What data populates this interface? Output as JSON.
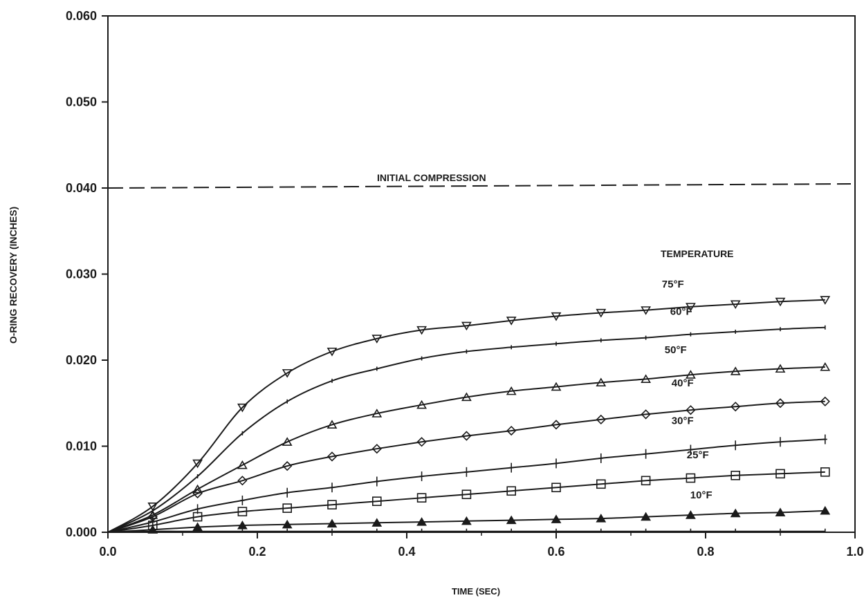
{
  "chart_data": {
    "type": "line",
    "title": "",
    "xlabel": "TIME (SEC)",
    "ylabel": "O-RING RECOVERY (INCHES)",
    "xlim": [
      0.0,
      1.0
    ],
    "ylim": [
      0.0,
      0.06
    ],
    "x_ticks": [
      0.0,
      0.2,
      0.4,
      0.6,
      0.8,
      1.0
    ],
    "x_tick_labels": [
      "0.0",
      "0.2",
      "0.4",
      "0.6",
      "0.8",
      "1.0"
    ],
    "y_ticks": [
      0.0,
      0.01,
      0.02,
      0.03,
      0.04,
      0.05,
      0.06
    ],
    "y_tick_labels": [
      "0.000",
      "0.010",
      "0.020",
      "0.030",
      "0.040",
      "0.050",
      "0.060"
    ],
    "grid": false,
    "legend_title": "TEMPERATURE",
    "reference_line": {
      "label": "INITIAL COMPRESSION",
      "y": 0.04,
      "style": "dashed"
    },
    "x": [
      0,
      0.06,
      0.12,
      0.18,
      0.24,
      0.3,
      0.36,
      0.42,
      0.48,
      0.54,
      0.6,
      0.66,
      0.72,
      0.78,
      0.84,
      0.9,
      0.96
    ],
    "series": [
      {
        "name": "75°F",
        "marker": "triangle-down",
        "values": [
          0,
          0.003,
          0.008,
          0.0145,
          0.0185,
          0.021,
          0.0225,
          0.0235,
          0.024,
          0.0246,
          0.0251,
          0.0255,
          0.0258,
          0.0262,
          0.0265,
          0.0268,
          0.027
        ]
      },
      {
        "name": "60°F",
        "marker": "cross",
        "values": [
          0,
          0.0025,
          0.0065,
          0.0115,
          0.0152,
          0.0176,
          0.019,
          0.0202,
          0.021,
          0.0215,
          0.0219,
          0.0223,
          0.0226,
          0.023,
          0.0233,
          0.0236,
          0.0238
        ]
      },
      {
        "name": "50°F",
        "marker": "triangle",
        "values": [
          0,
          0.002,
          0.005,
          0.0078,
          0.0105,
          0.0125,
          0.0138,
          0.0148,
          0.0157,
          0.0164,
          0.0169,
          0.0174,
          0.0178,
          0.0183,
          0.0187,
          0.019,
          0.0192
        ]
      },
      {
        "name": "40°F",
        "marker": "diamond",
        "values": [
          0,
          0.0018,
          0.0045,
          0.006,
          0.0077,
          0.0088,
          0.0097,
          0.0105,
          0.0112,
          0.0118,
          0.0125,
          0.0131,
          0.0137,
          0.0142,
          0.0146,
          0.015,
          0.0152
        ]
      },
      {
        "name": "30°F",
        "marker": "plus",
        "values": [
          0,
          0.0012,
          0.0027,
          0.0037,
          0.0046,
          0.0052,
          0.0059,
          0.0065,
          0.007,
          0.0075,
          0.008,
          0.0086,
          0.0091,
          0.0096,
          0.0101,
          0.0105,
          0.0108
        ]
      },
      {
        "name": "25°F",
        "marker": "square",
        "values": [
          0,
          0.0008,
          0.0018,
          0.0024,
          0.0028,
          0.0032,
          0.0036,
          0.004,
          0.0044,
          0.0048,
          0.0052,
          0.0056,
          0.006,
          0.0063,
          0.0066,
          0.0068,
          0.007
        ]
      },
      {
        "name": "10°F",
        "marker": "filled-triangle",
        "values": [
          0,
          0.0003,
          0.0006,
          0.0008,
          0.0009,
          0.001,
          0.0011,
          0.0012,
          0.0013,
          0.0014,
          0.0015,
          0.0016,
          0.0018,
          0.002,
          0.0022,
          0.0023,
          0.0025
        ]
      },
      {
        "name": "",
        "marker": "tick",
        "values": [
          0,
          0.0001,
          0.0001,
          0.0001,
          0.0001,
          0.0001,
          0.0001,
          0.0001,
          0.0001,
          0.0001,
          0.0001,
          0.0001,
          0.0001,
          0.0001,
          0.0001,
          0.0001,
          0.0001
        ]
      }
    ]
  }
}
